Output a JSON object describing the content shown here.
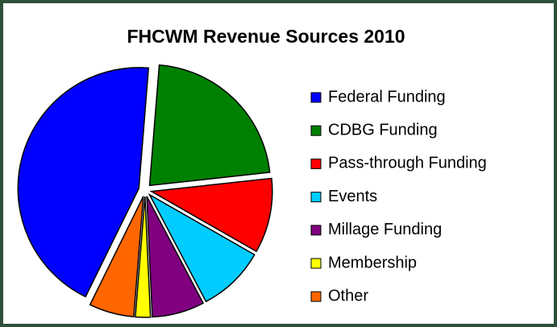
{
  "chart_data": {
    "type": "pie",
    "title": "FHCWM Revenue Sources 2010",
    "categories": [
      "Federal Funding",
      "CDBG Funding",
      "Pass-through Funding",
      "Events",
      "Millage Funding",
      "Membership",
      "Other"
    ],
    "values": [
      44,
      22,
      10,
      9,
      7,
      2,
      6
    ],
    "colors": [
      "#0000ff",
      "#008000",
      "#ff0000",
      "#00ccff",
      "#800080",
      "#ffff00",
      "#ff6600"
    ],
    "legend": "right"
  }
}
